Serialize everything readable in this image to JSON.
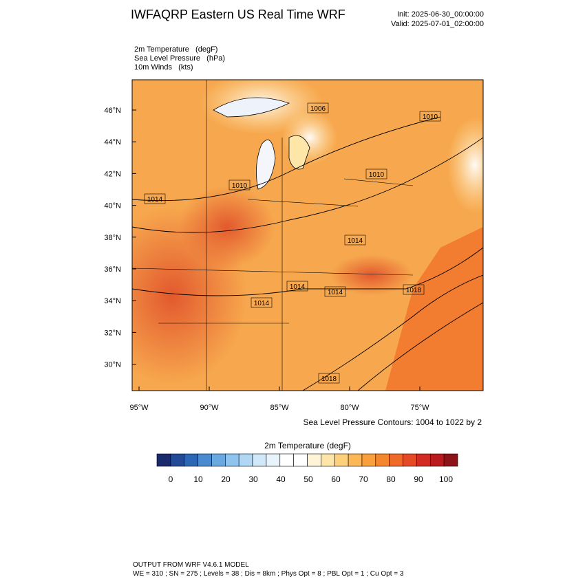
{
  "title": "IWFAQRP Eastern US Real Time WRF",
  "init": "Init: 2025-06-30_00:00:00",
  "valid": "Valid: 2025-07-01_02:00:00",
  "fields": [
    "2m Temperature   (degF)",
    "Sea Level Pressure   (hPa)",
    "10m Winds   (kts)"
  ],
  "lat_labels": [
    "46°N",
    "44°N",
    "42°N",
    "40°N",
    "38°N",
    "36°N",
    "34°N",
    "32°N",
    "30°N"
  ],
  "lon_labels": [
    "95°W",
    "90°W",
    "85°W",
    "80°W",
    "75°W"
  ],
  "contour_labels": [
    "1006",
    "1010",
    "1010",
    "1010",
    "1014",
    "1014",
    "1014",
    "1014",
    "1014",
    "1018",
    "1018"
  ],
  "contour_note": "Sea Level Pressure Contours: 1004 to 1022 by 2",
  "colorbar": {
    "title": "2m Temperature  (degF)",
    "colors": [
      "#1a2a6c",
      "#234a96",
      "#2e66b6",
      "#4a8ad0",
      "#6aa8e0",
      "#8ec4ee",
      "#b0d8f4",
      "#d0e8f8",
      "#e8f4fc",
      "#ffffff",
      "#ffffff",
      "#fff4d8",
      "#fde6a8",
      "#fdd07c",
      "#fcb856",
      "#f9a03c",
      "#f5862e",
      "#ef6a28",
      "#e54a26",
      "#d42a24",
      "#b81a1e",
      "#8c1418"
    ],
    "labels": [
      "0",
      "10",
      "20",
      "30",
      "40",
      "50",
      "60",
      "70",
      "80",
      "90",
      "100"
    ]
  },
  "footer": [
    "OUTPUT FROM WRF V4.6.1 MODEL",
    "WE = 310 ; SN = 275 ; Levels = 38 ; Dis = 8km ; Phys Opt = 8 ; PBL Opt = 1 ; Cu Opt = 3"
  ]
}
